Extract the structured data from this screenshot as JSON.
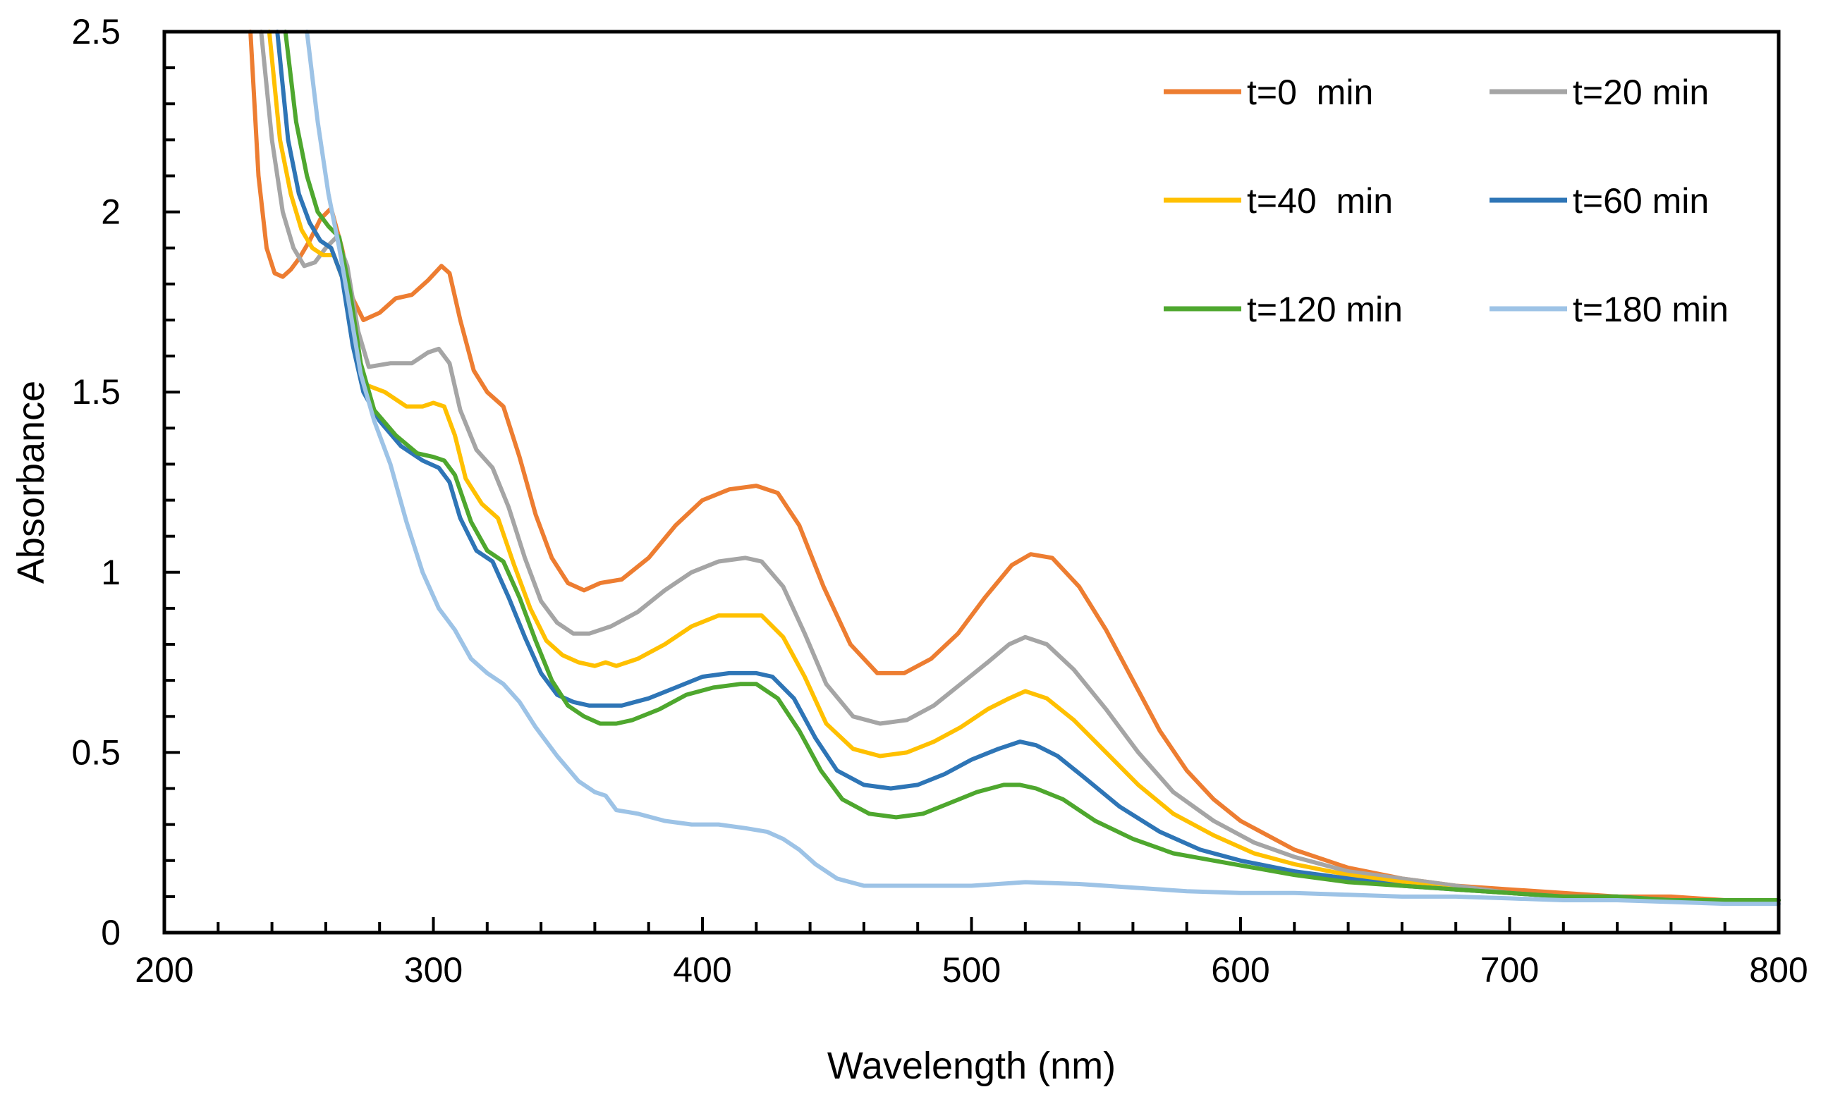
{
  "chart_data": {
    "type": "line",
    "title": "",
    "xlabel": "Wavelength (nm)",
    "ylabel": "Absorbance",
    "xlim": [
      200,
      800
    ],
    "ylim": [
      0,
      2.5
    ],
    "xticks": [
      200,
      300,
      400,
      500,
      600,
      700,
      800
    ],
    "xtick_labels": [
      "200",
      "300",
      "400",
      "500",
      "600",
      "700",
      "800"
    ],
    "yticks": [
      0,
      0.5,
      1,
      1.5,
      2,
      2.5
    ],
    "ytick_labels": [
      "0",
      "0.5",
      "1",
      "1.5",
      "2",
      "2.5"
    ],
    "x_minor_step": 20,
    "y_minor_step": 0.1,
    "grid": false,
    "legend_position": "top-right",
    "series": [
      {
        "name": "t=0  min",
        "color": "#ED7D31",
        "x": [
          232,
          235,
          238,
          241,
          244,
          247,
          250,
          254,
          258,
          262,
          266,
          270,
          274,
          280,
          286,
          292,
          298,
          303,
          306,
          310,
          315,
          320,
          326,
          332,
          338,
          344,
          350,
          356,
          362,
          370,
          380,
          390,
          400,
          410,
          420,
          428,
          436,
          445,
          455,
          465,
          475,
          485,
          495,
          505,
          515,
          522,
          530,
          540,
          550,
          560,
          570,
          580,
          590,
          600,
          620,
          640,
          660,
          680,
          700,
          720,
          740,
          760,
          780,
          800
        ],
        "y": [
          2.5,
          2.1,
          1.9,
          1.83,
          1.82,
          1.84,
          1.87,
          1.92,
          1.98,
          2.01,
          1.9,
          1.76,
          1.7,
          1.72,
          1.76,
          1.77,
          1.81,
          1.85,
          1.83,
          1.7,
          1.56,
          1.5,
          1.46,
          1.32,
          1.16,
          1.04,
          0.97,
          0.95,
          0.97,
          0.98,
          1.04,
          1.13,
          1.2,
          1.23,
          1.24,
          1.22,
          1.13,
          0.96,
          0.8,
          0.72,
          0.72,
          0.76,
          0.83,
          0.93,
          1.02,
          1.05,
          1.04,
          0.96,
          0.84,
          0.7,
          0.56,
          0.45,
          0.37,
          0.31,
          0.23,
          0.18,
          0.15,
          0.13,
          0.12,
          0.11,
          0.1,
          0.1,
          0.09,
          0.09
        ]
      },
      {
        "name": "t=20 min",
        "color": "#A5A5A5",
        "x": [
          236,
          240,
          244,
          248,
          252,
          256,
          260,
          264,
          268,
          272,
          276,
          284,
          292,
          298,
          302,
          306,
          310,
          316,
          322,
          328,
          334,
          340,
          346,
          352,
          358,
          366,
          376,
          386,
          396,
          406,
          416,
          422,
          430,
          438,
          446,
          456,
          466,
          476,
          486,
          496,
          506,
          514,
          520,
          528,
          538,
          550,
          562,
          575,
          590,
          605,
          620,
          640,
          660,
          680,
          700,
          720,
          740,
          760,
          780,
          800
        ],
        "y": [
          2.5,
          2.2,
          2.0,
          1.9,
          1.85,
          1.86,
          1.9,
          1.93,
          1.85,
          1.67,
          1.57,
          1.58,
          1.58,
          1.61,
          1.62,
          1.58,
          1.45,
          1.34,
          1.29,
          1.18,
          1.04,
          0.92,
          0.86,
          0.83,
          0.83,
          0.85,
          0.89,
          0.95,
          1.0,
          1.03,
          1.04,
          1.03,
          0.96,
          0.83,
          0.69,
          0.6,
          0.58,
          0.59,
          0.63,
          0.69,
          0.75,
          0.8,
          0.82,
          0.8,
          0.73,
          0.62,
          0.5,
          0.39,
          0.31,
          0.25,
          0.21,
          0.17,
          0.15,
          0.13,
          0.11,
          0.1,
          0.1,
          0.09,
          0.09,
          0.09
        ]
      },
      {
        "name": "t=40  min",
        "color": "#FFC000",
        "x": [
          239,
          243,
          247,
          251,
          255,
          259,
          263,
          267,
          271,
          275,
          282,
          290,
          296,
          300,
          304,
          308,
          312,
          318,
          324,
          330,
          336,
          342,
          348,
          354,
          360,
          364,
          368,
          376,
          386,
          396,
          406,
          416,
          422,
          430,
          438,
          446,
          456,
          466,
          476,
          486,
          496,
          506,
          514,
          520,
          528,
          538,
          550,
          562,
          575,
          590,
          605,
          620,
          640,
          660,
          680,
          700,
          720,
          740,
          760,
          780,
          800
        ],
        "y": [
          2.5,
          2.2,
          2.05,
          1.95,
          1.9,
          1.88,
          1.88,
          1.8,
          1.62,
          1.52,
          1.5,
          1.46,
          1.46,
          1.47,
          1.46,
          1.38,
          1.26,
          1.19,
          1.15,
          1.02,
          0.9,
          0.81,
          0.77,
          0.75,
          0.74,
          0.75,
          0.74,
          0.76,
          0.8,
          0.85,
          0.88,
          0.88,
          0.88,
          0.82,
          0.71,
          0.58,
          0.51,
          0.49,
          0.5,
          0.53,
          0.57,
          0.62,
          0.65,
          0.67,
          0.65,
          0.59,
          0.5,
          0.41,
          0.33,
          0.27,
          0.22,
          0.19,
          0.16,
          0.14,
          0.12,
          0.11,
          0.1,
          0.1,
          0.09,
          0.09,
          0.09
        ]
      },
      {
        "name": "t=60 min",
        "color": "#2E75B6",
        "x": [
          242,
          246,
          250,
          254,
          258,
          262,
          266,
          270,
          274,
          280,
          288,
          296,
          302,
          306,
          310,
          316,
          322,
          328,
          334,
          340,
          346,
          352,
          358,
          364,
          370,
          380,
          390,
          400,
          410,
          420,
          426,
          434,
          442,
          450,
          460,
          470,
          480,
          490,
          500,
          510,
          518,
          524,
          532,
          542,
          555,
          570,
          585,
          600,
          620,
          640,
          660,
          680,
          700,
          720,
          740,
          760,
          780,
          800
        ],
        "y": [
          2.5,
          2.2,
          2.05,
          1.97,
          1.92,
          1.9,
          1.82,
          1.63,
          1.5,
          1.42,
          1.35,
          1.31,
          1.29,
          1.25,
          1.15,
          1.06,
          1.03,
          0.93,
          0.82,
          0.72,
          0.66,
          0.64,
          0.63,
          0.63,
          0.63,
          0.65,
          0.68,
          0.71,
          0.72,
          0.72,
          0.71,
          0.65,
          0.54,
          0.45,
          0.41,
          0.4,
          0.41,
          0.44,
          0.48,
          0.51,
          0.53,
          0.52,
          0.49,
          0.43,
          0.35,
          0.28,
          0.23,
          0.2,
          0.17,
          0.15,
          0.13,
          0.12,
          0.11,
          0.1,
          0.1,
          0.09,
          0.09,
          0.09
        ]
      },
      {
        "name": "t=120 min",
        "color": "#4EA72E",
        "x": [
          245,
          249,
          253,
          257,
          261,
          265,
          269,
          273,
          278,
          286,
          294,
          300,
          304,
          308,
          314,
          320,
          326,
          332,
          338,
          344,
          350,
          356,
          362,
          368,
          374,
          384,
          394,
          404,
          414,
          420,
          428,
          436,
          444,
          452,
          462,
          472,
          482,
          492,
          502,
          512,
          518,
          524,
          534,
          546,
          560,
          575,
          590,
          605,
          620,
          640,
          660,
          680,
          700,
          720,
          740,
          760,
          780,
          800
        ],
        "y": [
          2.5,
          2.25,
          2.1,
          2.0,
          1.96,
          1.93,
          1.78,
          1.58,
          1.45,
          1.38,
          1.33,
          1.32,
          1.31,
          1.27,
          1.14,
          1.06,
          1.03,
          0.93,
          0.81,
          0.7,
          0.63,
          0.6,
          0.58,
          0.58,
          0.59,
          0.62,
          0.66,
          0.68,
          0.69,
          0.69,
          0.65,
          0.56,
          0.45,
          0.37,
          0.33,
          0.32,
          0.33,
          0.36,
          0.39,
          0.41,
          0.41,
          0.4,
          0.37,
          0.31,
          0.26,
          0.22,
          0.2,
          0.18,
          0.16,
          0.14,
          0.13,
          0.12,
          0.11,
          0.1,
          0.1,
          0.09,
          0.09,
          0.09
        ]
      },
      {
        "name": "t=180 min",
        "color": "#9DC3E6",
        "x": [
          253,
          257,
          261,
          265,
          269,
          273,
          278,
          284,
          290,
          296,
          302,
          308,
          314,
          320,
          326,
          332,
          338,
          346,
          354,
          360,
          364,
          368,
          376,
          386,
          396,
          406,
          416,
          424,
          430,
          436,
          442,
          450,
          460,
          480,
          500,
          520,
          540,
          560,
          580,
          600,
          620,
          640,
          660,
          680,
          700,
          720,
          740,
          760,
          780,
          800
        ],
        "y": [
          2.5,
          2.25,
          2.05,
          1.9,
          1.73,
          1.55,
          1.42,
          1.3,
          1.14,
          1.0,
          0.9,
          0.84,
          0.76,
          0.72,
          0.69,
          0.64,
          0.57,
          0.49,
          0.42,
          0.39,
          0.38,
          0.34,
          0.33,
          0.31,
          0.3,
          0.3,
          0.29,
          0.28,
          0.26,
          0.23,
          0.19,
          0.15,
          0.13,
          0.13,
          0.13,
          0.14,
          0.135,
          0.125,
          0.115,
          0.11,
          0.11,
          0.105,
          0.1,
          0.1,
          0.095,
          0.09,
          0.09,
          0.085,
          0.08,
          0.08
        ]
      }
    ]
  }
}
